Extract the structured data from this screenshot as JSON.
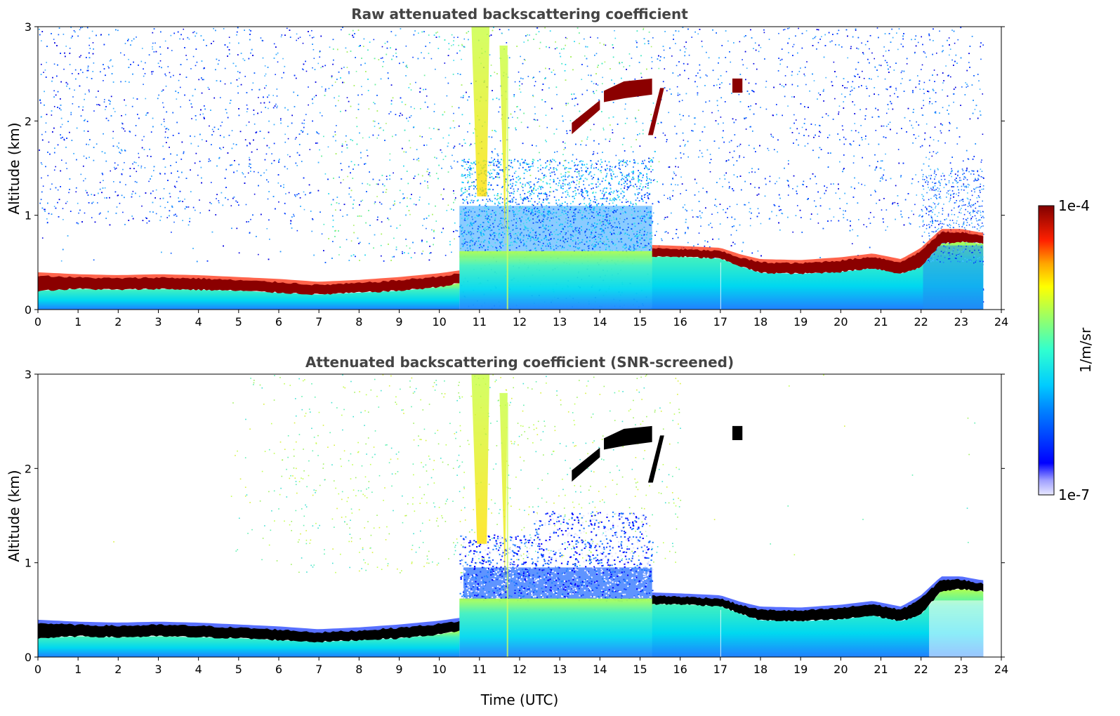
{
  "chart_data": [
    {
      "type": "heatmap",
      "title": "Raw attenuated backscattering coefficient",
      "xlabel": "",
      "ylabel": "Altitude (km)",
      "xlim": [
        0,
        24
      ],
      "ylim": [
        0,
        3
      ],
      "x_ticks": [
        "0",
        "1",
        "2",
        "3",
        "4",
        "5",
        "6",
        "7",
        "8",
        "9",
        "10",
        "11",
        "12",
        "13",
        "14",
        "15",
        "16",
        "17",
        "18",
        "19",
        "20",
        "21",
        "22",
        "23",
        "24"
      ],
      "y_ticks": [
        "0",
        "1",
        "2",
        "3"
      ],
      "data_end_time": 23.55,
      "layer_top_km": [
        [
          0,
          0.36
        ],
        [
          1,
          0.34
        ],
        [
          2,
          0.33
        ],
        [
          3,
          0.34
        ],
        [
          4,
          0.33
        ],
        [
          5,
          0.31
        ],
        [
          6,
          0.29
        ],
        [
          7,
          0.26
        ],
        [
          8,
          0.28
        ],
        [
          9,
          0.31
        ],
        [
          10,
          0.35
        ],
        [
          10.5,
          0.38
        ],
        [
          15.3,
          0.65
        ],
        [
          16,
          0.64
        ],
        [
          17,
          0.62
        ],
        [
          17.5,
          0.55
        ],
        [
          18,
          0.5
        ],
        [
          19,
          0.49
        ],
        [
          20,
          0.52
        ],
        [
          20.8,
          0.56
        ],
        [
          21.5,
          0.5
        ],
        [
          22,
          0.62
        ],
        [
          22.5,
          0.82
        ],
        [
          23,
          0.82
        ],
        [
          23.5,
          0.78
        ]
      ],
      "layer_bottom_km": [
        [
          0,
          0.2
        ],
        [
          1,
          0.22
        ],
        [
          2,
          0.21
        ],
        [
          3,
          0.22
        ],
        [
          4,
          0.21
        ],
        [
          5,
          0.2
        ],
        [
          6,
          0.18
        ],
        [
          7,
          0.16
        ],
        [
          8,
          0.18
        ],
        [
          9,
          0.2
        ],
        [
          10,
          0.24
        ],
        [
          10.5,
          0.28
        ],
        [
          15.3,
          0.56
        ],
        [
          16,
          0.56
        ],
        [
          17,
          0.54
        ],
        [
          17.5,
          0.46
        ],
        [
          18,
          0.39
        ],
        [
          19,
          0.38
        ],
        [
          20,
          0.4
        ],
        [
          20.8,
          0.44
        ],
        [
          21.5,
          0.38
        ],
        [
          22,
          0.45
        ],
        [
          22.5,
          0.7
        ],
        [
          23,
          0.72
        ],
        [
          23.5,
          0.7
        ]
      ],
      "elevated_layers_km": [
        {
          "t": [
            13.3,
            14.0
          ],
          "alt": [
            1.85,
            2.2
          ]
        },
        {
          "t": [
            14.1,
            15.3
          ],
          "alt": [
            2.2,
            2.45
          ]
        },
        {
          "t": [
            15.2,
            15.6
          ],
          "alt": [
            1.85,
            2.35
          ]
        },
        {
          "t": [
            17.3,
            17.55
          ],
          "alt": [
            2.3,
            2.45
          ]
        }
      ],
      "ice_streaks_km": [
        {
          "t": [
            10.8,
            11.25
          ],
          "alt": [
            1.2,
            3.0
          ]
        },
        {
          "t": [
            11.5,
            11.7
          ],
          "alt": [
            0.7,
            2.8
          ]
        }
      ],
      "screened": false
    },
    {
      "type": "heatmap",
      "title": "Attenuated backscattering coefficient (SNR-screened)",
      "xlabel": "Time (UTC)",
      "ylabel": "Altitude (km)",
      "xlim": [
        0,
        24
      ],
      "ylim": [
        0,
        3
      ],
      "x_ticks": [
        "0",
        "1",
        "2",
        "3",
        "4",
        "5",
        "6",
        "7",
        "8",
        "9",
        "10",
        "11",
        "12",
        "13",
        "14",
        "15",
        "16",
        "17",
        "18",
        "19",
        "20",
        "21",
        "22",
        "23",
        "24"
      ],
      "y_ticks": [
        "0",
        "1",
        "2",
        "3"
      ],
      "data_end_time": 23.55,
      "screened": true
    }
  ],
  "colorbar": {
    "label": "1/m/sr",
    "max_label": "1e-4",
    "min_label": "1e-7"
  },
  "colors": {
    "title_color": "#444444",
    "saturated_layer_raw": "#8b0000",
    "saturated_layer_screened": "#000000"
  }
}
